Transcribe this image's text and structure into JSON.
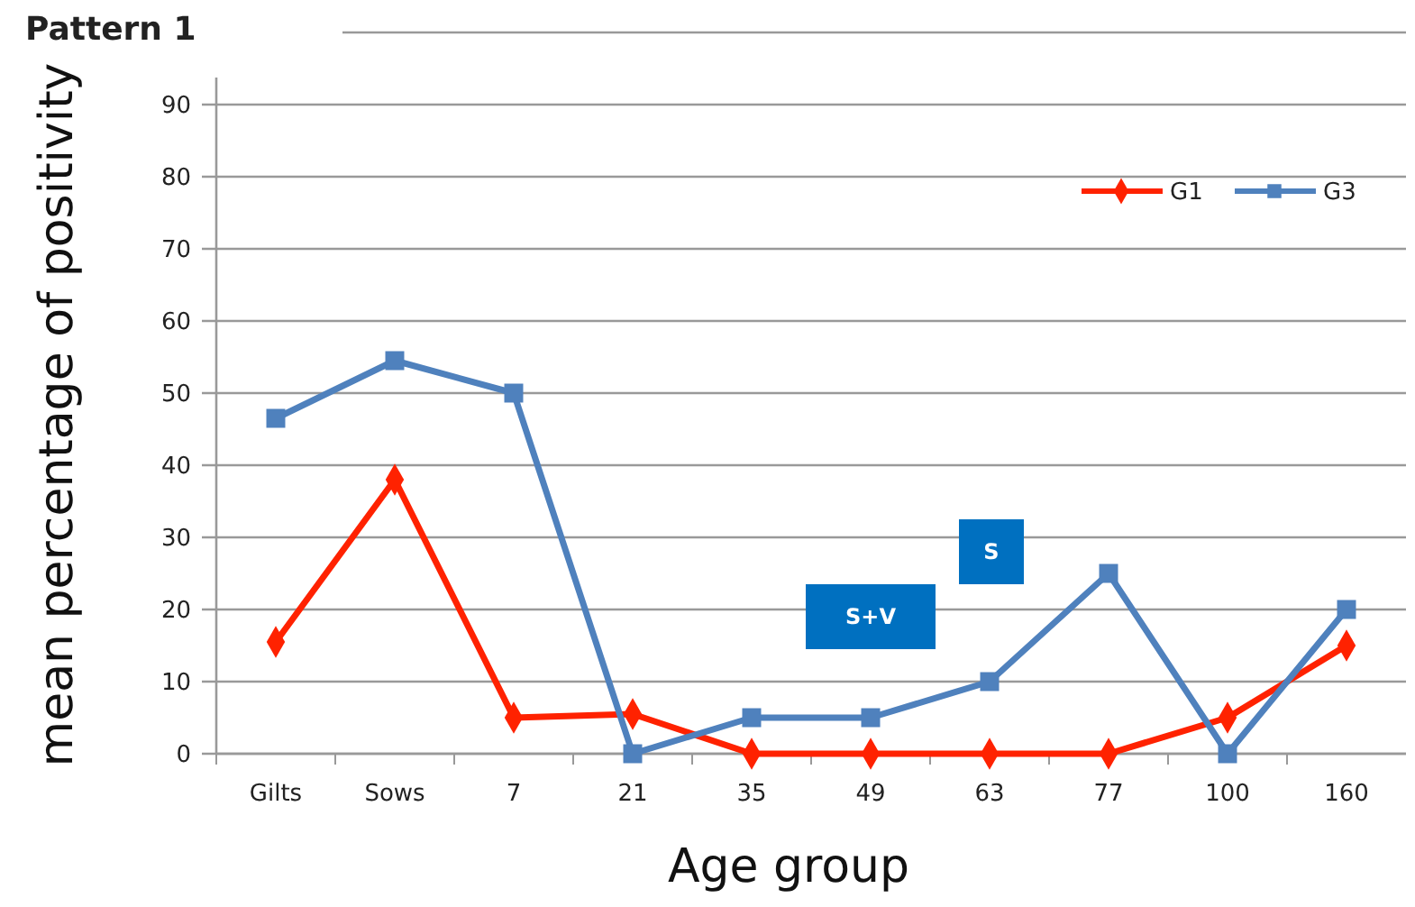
{
  "chart_data": {
    "type": "line",
    "title": "Pattern 1",
    "xlabel": "Age group",
    "ylabel": "mean percentage of positivity",
    "categories": [
      "Gilts",
      "Sows",
      "7",
      "21",
      "35",
      "49",
      "63",
      "77",
      "100",
      "160"
    ],
    "series": [
      {
        "name": "G1",
        "color": "#ff2200",
        "marker": "diamond",
        "values": [
          15.5,
          38,
          5,
          5.5,
          0,
          0,
          0,
          0,
          5,
          15
        ]
      },
      {
        "name": "G3",
        "color": "#4f81bd",
        "marker": "square",
        "values": [
          46.5,
          54.5,
          50,
          0,
          5,
          5,
          10,
          25,
          0,
          20
        ]
      }
    ],
    "ylim": [
      0,
      100
    ],
    "yticks": [
      0,
      10,
      20,
      30,
      40,
      50,
      60,
      70,
      80,
      90,
      {
        "value": 100,
        "label": null
      }
    ],
    "grid": "y",
    "legend": "top right",
    "line_style": "solid",
    "annotations": [
      "S+V",
      "S"
    ]
  }
}
